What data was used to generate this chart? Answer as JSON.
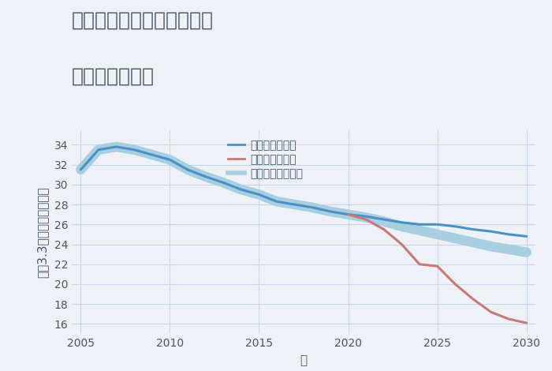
{
  "title_line1": "兵庫県姫路市飾磨区玉地の",
  "title_line2": "土地の価格推移",
  "xlabel": "年",
  "ylabel": "坪（3.3㎡）単価（万円）",
  "background_color": "#eef2f7",
  "plot_background": "#eef2f7",
  "good_scenario": {
    "label": "グッドシナリオ",
    "color": "#4a90c4",
    "linewidth": 2.2,
    "years": [
      2005,
      2006,
      2007,
      2008,
      2009,
      2010,
      2011,
      2012,
      2013,
      2014,
      2015,
      2016,
      2017,
      2018,
      2019,
      2020,
      2021,
      2022,
      2023,
      2024,
      2025,
      2026,
      2027,
      2028,
      2029,
      2030
    ],
    "values": [
      31.5,
      33.5,
      33.8,
      33.5,
      33.0,
      32.5,
      31.5,
      30.8,
      30.2,
      29.5,
      29.0,
      28.3,
      28.0,
      27.7,
      27.3,
      27.0,
      26.8,
      26.5,
      26.2,
      26.0,
      26.0,
      25.8,
      25.5,
      25.3,
      25.0,
      24.8
    ]
  },
  "bad_scenario": {
    "label": "バッドシナリオ",
    "color": "#c87878",
    "linewidth": 2.2,
    "years": [
      2020,
      2021,
      2022,
      2023,
      2024,
      2025,
      2026,
      2027,
      2028,
      2029,
      2030
    ],
    "values": [
      27.0,
      26.5,
      25.5,
      24.0,
      22.0,
      21.8,
      20.0,
      18.5,
      17.2,
      16.5,
      16.1
    ]
  },
  "normal_scenario": {
    "label": "ノーマルシナリオ",
    "color": "#a8cfe0",
    "linewidth": 9.0,
    "years": [
      2005,
      2006,
      2007,
      2008,
      2009,
      2010,
      2011,
      2012,
      2013,
      2014,
      2015,
      2016,
      2017,
      2018,
      2019,
      2020,
      2021,
      2022,
      2023,
      2024,
      2025,
      2026,
      2027,
      2028,
      2029,
      2030
    ],
    "values": [
      31.5,
      33.5,
      33.8,
      33.5,
      33.0,
      32.5,
      31.5,
      30.8,
      30.2,
      29.5,
      29.0,
      28.3,
      28.0,
      27.7,
      27.3,
      27.0,
      26.7,
      26.3,
      25.8,
      25.4,
      25.0,
      24.6,
      24.2,
      23.8,
      23.5,
      23.2
    ]
  },
  "ylim": [
    15,
    35.5
  ],
  "xlim": [
    2004.5,
    2030.5
  ],
  "yticks": [
    16,
    18,
    20,
    22,
    24,
    26,
    28,
    30,
    32,
    34
  ],
  "xticks": [
    2005,
    2010,
    2015,
    2020,
    2025,
    2030
  ],
  "title_fontsize": 18,
  "axis_label_fontsize": 11,
  "tick_fontsize": 10,
  "legend_fontsize": 10,
  "grid_color": "#c8d8e8",
  "text_color": "#445566"
}
